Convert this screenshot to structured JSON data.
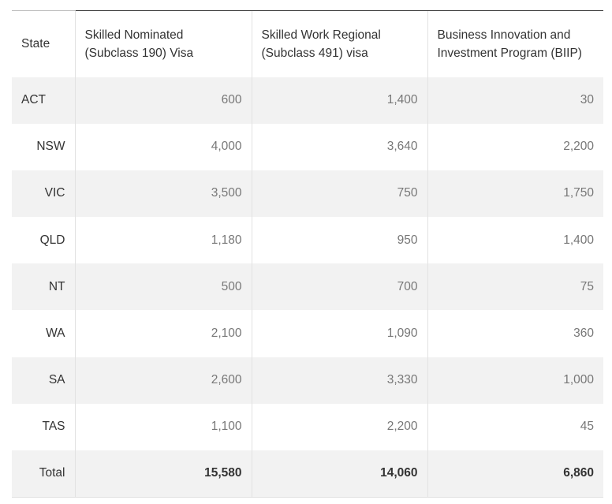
{
  "table": {
    "headers": [
      "State",
      "Skilled Nominated (Subclass 190) Visa",
      "Skilled Work Regional (Subclass 491) visa",
      "Business Innovation and Investment Program (BIIP)"
    ],
    "header_lines": [
      [
        "State"
      ],
      [
        "Skilled Nominated",
        "(Subclass 190) Visa"
      ],
      [
        "Skilled Work Regional",
        "(Subclass 491) visa"
      ],
      [
        "Business Innovation and",
        "Investment Program (BIIP)"
      ]
    ],
    "rows": [
      [
        "ACT",
        "600",
        "1,400",
        "30"
      ],
      [
        "NSW",
        "4,000",
        "3,640",
        "2,200"
      ],
      [
        "VIC",
        "3,500",
        "750",
        "1,750"
      ],
      [
        "QLD",
        "1,180",
        "950",
        "1,400"
      ],
      [
        "NT",
        "500",
        "700",
        "75"
      ],
      [
        "WA",
        "2,100",
        "1,090",
        "360"
      ],
      [
        "SA",
        "2,600",
        "3,330",
        "1,000"
      ],
      [
        "TAS",
        "1,100",
        "2,200",
        "45"
      ],
      [
        "Total",
        "15,580",
        "14,060",
        "6,860"
      ]
    ]
  }
}
